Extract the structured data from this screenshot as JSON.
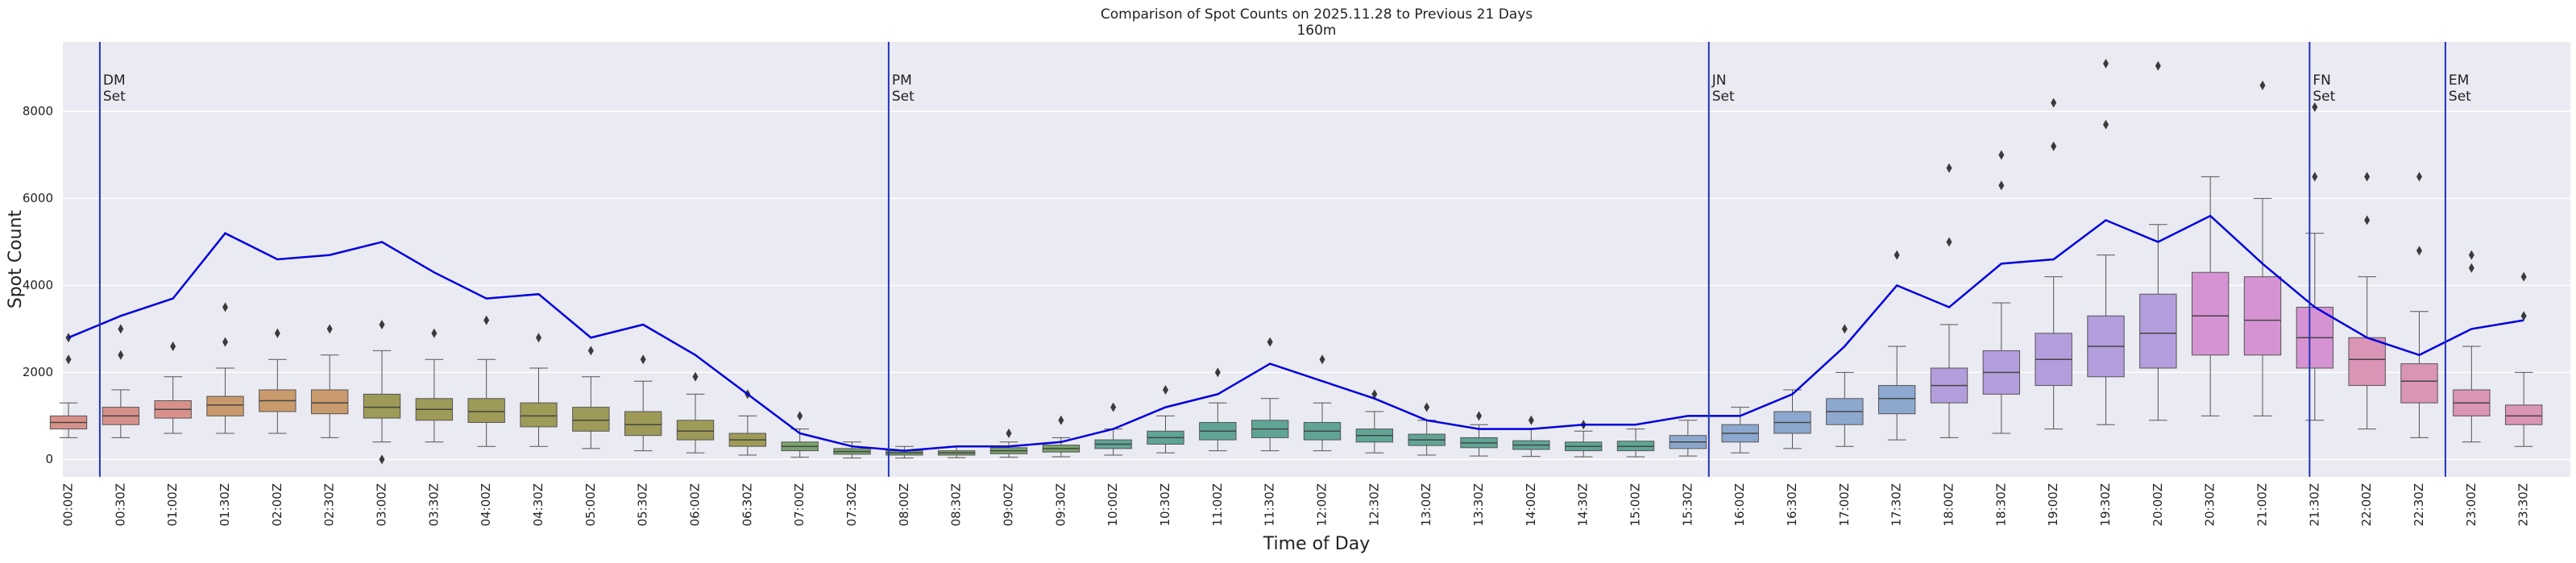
{
  "chart_data": {
    "type": "box",
    "title": "Comparison of Spot Counts on 2025.11.28 to Previous 21 Days",
    "subtitle": "160m",
    "x_label": "Time of Day",
    "y_label": "Spot Count",
    "ylim": [
      -400,
      9600
    ],
    "yticks": [
      0,
      2000,
      4000,
      6000,
      8000
    ],
    "grid": true,
    "categories": [
      "00:00Z",
      "00:30Z",
      "01:00Z",
      "01:30Z",
      "02:00Z",
      "02:30Z",
      "03:00Z",
      "03:30Z",
      "04:00Z",
      "04:30Z",
      "05:00Z",
      "05:30Z",
      "06:00Z",
      "06:30Z",
      "07:00Z",
      "07:30Z",
      "08:00Z",
      "08:30Z",
      "09:00Z",
      "09:30Z",
      "10:00Z",
      "10:30Z",
      "11:00Z",
      "11:30Z",
      "12:00Z",
      "12:30Z",
      "13:00Z",
      "13:30Z",
      "14:00Z",
      "14:30Z",
      "15:00Z",
      "15:30Z",
      "16:00Z",
      "16:30Z",
      "17:00Z",
      "17:30Z",
      "18:00Z",
      "18:30Z",
      "19:00Z",
      "19:30Z",
      "20:00Z",
      "20:30Z",
      "21:00Z",
      "21:30Z",
      "22:00Z",
      "22:30Z",
      "23:00Z",
      "23:30Z"
    ],
    "box_colors": [
      "#d8918a",
      "#d8918a",
      "#d8918a",
      "#c99a6c",
      "#c99a6c",
      "#c99a6c",
      "#9e9a58",
      "#9e9a58",
      "#9e9a58",
      "#9e9a58",
      "#9e9a58",
      "#9e9a58",
      "#9e9a58",
      "#9e9a58",
      "#79a36c",
      "#79a36c",
      "#79a36c",
      "#79a36c",
      "#79a36c",
      "#79a36c",
      "#5fa596",
      "#5fa596",
      "#5fa596",
      "#5fa596",
      "#5fa596",
      "#5fa596",
      "#5fa596",
      "#5fa596",
      "#5fa596",
      "#5fa596",
      "#5fa596",
      "#8da8cf",
      "#8da8cf",
      "#8da8cf",
      "#8da8cf",
      "#8da8cf",
      "#b49ddc",
      "#b49ddc",
      "#b49ddc",
      "#b49ddc",
      "#b49ddc",
      "#d693d3",
      "#d693d3",
      "#d693d3",
      "#da94b6",
      "#da94b6",
      "#da94b6",
      "#da94b6"
    ],
    "boxes": [
      {
        "whislo": 500,
        "q1": 700,
        "med": 850,
        "q3": 1000,
        "whishi": 1300,
        "fliers": [
          2300,
          2800
        ]
      },
      {
        "whislo": 500,
        "q1": 800,
        "med": 1000,
        "q3": 1200,
        "whishi": 1600,
        "fliers": [
          2400,
          3000
        ]
      },
      {
        "whislo": 600,
        "q1": 950,
        "med": 1150,
        "q3": 1350,
        "whishi": 1900,
        "fliers": [
          2600
        ]
      },
      {
        "whislo": 600,
        "q1": 1000,
        "med": 1250,
        "q3": 1450,
        "whishi": 2100,
        "fliers": [
          2700,
          3500
        ]
      },
      {
        "whislo": 600,
        "q1": 1100,
        "med": 1350,
        "q3": 1600,
        "whishi": 2300,
        "fliers": [
          2900
        ]
      },
      {
        "whislo": 500,
        "q1": 1050,
        "med": 1300,
        "q3": 1600,
        "whishi": 2400,
        "fliers": [
          3000
        ]
      },
      {
        "whislo": 400,
        "q1": 950,
        "med": 1200,
        "q3": 1500,
        "whishi": 2500,
        "fliers": [
          3100,
          0
        ]
      },
      {
        "whislo": 400,
        "q1": 900,
        "med": 1150,
        "q3": 1400,
        "whishi": 2300,
        "fliers": [
          2900
        ]
      },
      {
        "whislo": 300,
        "q1": 850,
        "med": 1100,
        "q3": 1400,
        "whishi": 2300,
        "fliers": [
          3200
        ]
      },
      {
        "whislo": 300,
        "q1": 750,
        "med": 1000,
        "q3": 1300,
        "whishi": 2100,
        "fliers": [
          2800
        ]
      },
      {
        "whislo": 250,
        "q1": 650,
        "med": 900,
        "q3": 1200,
        "whishi": 1900,
        "fliers": [
          2500
        ]
      },
      {
        "whislo": 200,
        "q1": 550,
        "med": 800,
        "q3": 1100,
        "whishi": 1800,
        "fliers": [
          2300
        ]
      },
      {
        "whislo": 150,
        "q1": 450,
        "med": 650,
        "q3": 900,
        "whishi": 1500,
        "fliers": [
          1900
        ]
      },
      {
        "whislo": 100,
        "q1": 300,
        "med": 450,
        "q3": 600,
        "whishi": 1000,
        "fliers": [
          1500
        ]
      },
      {
        "whislo": 50,
        "q1": 200,
        "med": 300,
        "q3": 400,
        "whishi": 700,
        "fliers": [
          1000
        ]
      },
      {
        "whislo": 30,
        "q1": 120,
        "med": 180,
        "q3": 250,
        "whishi": 400,
        "fliers": []
      },
      {
        "whislo": 30,
        "q1": 100,
        "med": 150,
        "q3": 200,
        "whishi": 300,
        "fliers": []
      },
      {
        "whislo": 40,
        "q1": 100,
        "med": 150,
        "q3": 200,
        "whishi": 300,
        "fliers": []
      },
      {
        "whislo": 50,
        "q1": 130,
        "med": 200,
        "q3": 270,
        "whishi": 400,
        "fliers": [
          600
        ]
      },
      {
        "whislo": 60,
        "q1": 170,
        "med": 250,
        "q3": 330,
        "whishi": 500,
        "fliers": [
          900
        ]
      },
      {
        "whislo": 100,
        "q1": 250,
        "med": 350,
        "q3": 450,
        "whishi": 700,
        "fliers": [
          1200
        ]
      },
      {
        "whislo": 150,
        "q1": 350,
        "med": 500,
        "q3": 650,
        "whishi": 1000,
        "fliers": [
          1600
        ]
      },
      {
        "whislo": 200,
        "q1": 450,
        "med": 650,
        "q3": 850,
        "whishi": 1300,
        "fliers": [
          2000
        ]
      },
      {
        "whislo": 200,
        "q1": 500,
        "med": 700,
        "q3": 900,
        "whishi": 1400,
        "fliers": [
          2700
        ]
      },
      {
        "whislo": 200,
        "q1": 450,
        "med": 650,
        "q3": 850,
        "whishi": 1300,
        "fliers": [
          2300
        ]
      },
      {
        "whislo": 150,
        "q1": 400,
        "med": 550,
        "q3": 700,
        "whishi": 1100,
        "fliers": [
          1500
        ]
      },
      {
        "whislo": 100,
        "q1": 320,
        "med": 450,
        "q3": 580,
        "whishi": 900,
        "fliers": [
          1200
        ]
      },
      {
        "whislo": 80,
        "q1": 270,
        "med": 380,
        "q3": 500,
        "whishi": 800,
        "fliers": [
          1000
        ]
      },
      {
        "whislo": 70,
        "q1": 230,
        "med": 330,
        "q3": 430,
        "whishi": 700,
        "fliers": [
          900
        ]
      },
      {
        "whislo": 60,
        "q1": 200,
        "med": 300,
        "q3": 400,
        "whishi": 650,
        "fliers": [
          800
        ]
      },
      {
        "whislo": 60,
        "q1": 200,
        "med": 300,
        "q3": 420,
        "whishi": 700,
        "fliers": []
      },
      {
        "whislo": 80,
        "q1": 250,
        "med": 400,
        "q3": 550,
        "whishi": 900,
        "fliers": []
      },
      {
        "whislo": 150,
        "q1": 400,
        "med": 600,
        "q3": 800,
        "whishi": 1200,
        "fliers": []
      },
      {
        "whislo": 250,
        "q1": 600,
        "med": 850,
        "q3": 1100,
        "whishi": 1600,
        "fliers": []
      },
      {
        "whislo": 300,
        "q1": 800,
        "med": 1100,
        "q3": 1400,
        "whishi": 2000,
        "fliers": [
          3000
        ]
      },
      {
        "whislo": 450,
        "q1": 1050,
        "med": 1400,
        "q3": 1700,
        "whishi": 2600,
        "fliers": [
          4700
        ]
      },
      {
        "whislo": 500,
        "q1": 1300,
        "med": 1700,
        "q3": 2100,
        "whishi": 3100,
        "fliers": [
          5000,
          6700
        ]
      },
      {
        "whislo": 600,
        "q1": 1500,
        "med": 2000,
        "q3": 2500,
        "whishi": 3600,
        "fliers": [
          6300,
          7000
        ]
      },
      {
        "whislo": 700,
        "q1": 1700,
        "med": 2300,
        "q3": 2900,
        "whishi": 4200,
        "fliers": [
          7200,
          8200
        ]
      },
      {
        "whislo": 800,
        "q1": 1900,
        "med": 2600,
        "q3": 3300,
        "whishi": 4700,
        "fliers": [
          7700,
          9100
        ]
      },
      {
        "whislo": 900,
        "q1": 2100,
        "med": 2900,
        "q3": 3800,
        "whishi": 5400,
        "fliers": [
          9050
        ]
      },
      {
        "whislo": 1000,
        "q1": 2400,
        "med": 3300,
        "q3": 4300,
        "whishi": 6500,
        "fliers": []
      },
      {
        "whislo": 1000,
        "q1": 2400,
        "med": 3200,
        "q3": 4200,
        "whishi": 6000,
        "fliers": [
          8600
        ]
      },
      {
        "whislo": 900,
        "q1": 2100,
        "med": 2800,
        "q3": 3500,
        "whishi": 5200,
        "fliers": [
          8100,
          6500
        ]
      },
      {
        "whislo": 700,
        "q1": 1700,
        "med": 2300,
        "q3": 2800,
        "whishi": 4200,
        "fliers": [
          5500,
          6500
        ]
      },
      {
        "whislo": 500,
        "q1": 1300,
        "med": 1800,
        "q3": 2200,
        "whishi": 3400,
        "fliers": [
          4800,
          6500
        ]
      },
      {
        "whislo": 400,
        "q1": 1000,
        "med": 1300,
        "q3": 1600,
        "whishi": 2600,
        "fliers": [
          4400,
          4700
        ]
      },
      {
        "whislo": 300,
        "q1": 800,
        "med": 1000,
        "q3": 1250,
        "whishi": 2000,
        "fliers": [
          3300,
          4200
        ]
      }
    ],
    "line": {
      "color": "#0000dd",
      "values": [
        2800,
        3300,
        3700,
        5200,
        4600,
        4700,
        5000,
        4300,
        3700,
        3800,
        2800,
        3100,
        2400,
        1500,
        600,
        300,
        200,
        300,
        300,
        400,
        700,
        1200,
        1500,
        2200,
        1800,
        1400,
        900,
        700,
        700,
        800,
        800,
        1000,
        1000,
        1500,
        2600,
        4000,
        3500,
        4500,
        4600,
        5500,
        5000,
        5600,
        4500,
        3500,
        2800,
        2400,
        3000,
        3200
      ]
    },
    "annotations": [
      {
        "x": 0.6,
        "lines": [
          "DM",
          "Set"
        ]
      },
      {
        "x": 15.7,
        "lines": [
          "PM",
          "Set"
        ]
      },
      {
        "x": 31.4,
        "lines": [
          "JN",
          "Set"
        ]
      },
      {
        "x": 42.9,
        "lines": [
          "FN",
          "Set"
        ]
      },
      {
        "x": 45.5,
        "lines": [
          "EM",
          "Set"
        ]
      }
    ],
    "annotation_color": "#2233bb"
  }
}
